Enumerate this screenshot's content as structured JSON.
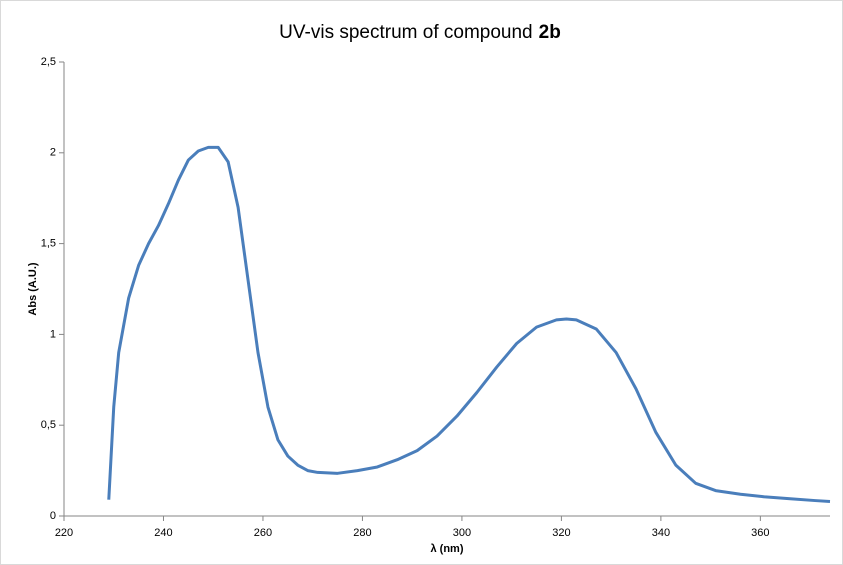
{
  "chart_data": {
    "type": "line",
    "title": "UV-vis spectrum of compound",
    "title_emphasis": "2b",
    "xlabel": "λ (nm)",
    "ylabel": "Abs (A.U.)",
    "x": [
      229,
      230,
      231,
      233,
      235,
      237,
      239,
      241,
      243,
      245,
      247,
      249,
      251,
      253,
      255,
      257,
      259,
      261,
      263,
      265,
      267,
      269,
      271,
      275,
      279,
      283,
      287,
      291,
      295,
      299,
      303,
      307,
      311,
      315,
      319,
      321,
      323,
      327,
      331,
      335,
      339,
      343,
      347,
      351,
      356,
      361,
      366,
      371,
      374
    ],
    "series": [
      {
        "name": "Abs",
        "color": "#4a7ebb",
        "values": [
          0.09,
          0.6,
          0.9,
          1.2,
          1.38,
          1.5,
          1.6,
          1.72,
          1.85,
          1.96,
          2.01,
          2.03,
          2.03,
          1.95,
          1.7,
          1.3,
          0.9,
          0.6,
          0.42,
          0.33,
          0.28,
          0.25,
          0.24,
          0.235,
          0.25,
          0.27,
          0.31,
          0.36,
          0.44,
          0.55,
          0.68,
          0.82,
          0.95,
          1.04,
          1.08,
          1.085,
          1.08,
          1.03,
          0.9,
          0.7,
          0.46,
          0.28,
          0.18,
          0.14,
          0.12,
          0.105,
          0.095,
          0.085,
          0.08
        ]
      }
    ],
    "xlim": [
      220,
      374
    ],
    "xticks": [
      220,
      240,
      260,
      280,
      300,
      320,
      340,
      360
    ],
    "ylim": [
      0,
      2.5
    ],
    "yticks": [
      0,
      {
        "value": 0.5,
        "label": "0,5"
      },
      1,
      {
        "value": 1.5,
        "label": "1,5"
      },
      2,
      {
        "value": 2.5,
        "label": "2,5"
      }
    ],
    "grid": false
  }
}
